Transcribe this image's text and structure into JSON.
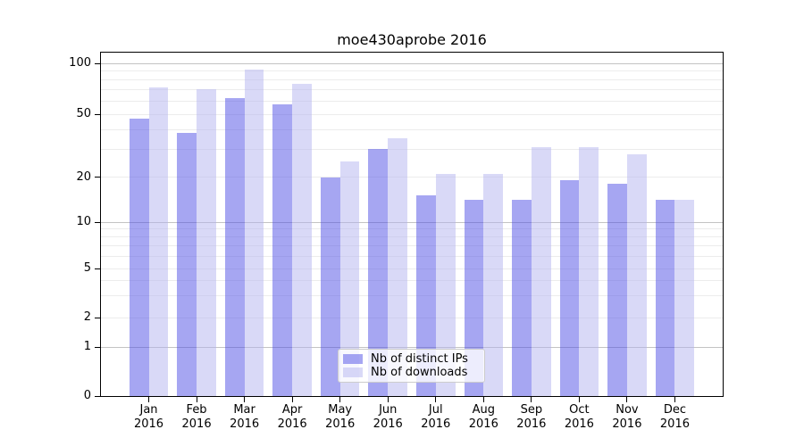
{
  "chart_data": {
    "type": "bar",
    "title": "moe430aprobe 2016",
    "xlabel": "",
    "ylabel": "",
    "categories": [
      "Jan 2016",
      "Feb 2016",
      "Mar 2016",
      "Apr 2016",
      "May 2016",
      "Jun 2016",
      "Jul 2016",
      "Aug 2016",
      "Sep 2016",
      "Oct 2016",
      "Nov 2016",
      "Dec 2016"
    ],
    "series": [
      {
        "name": "Nb of distinct IPs",
        "values": [
          47,
          38,
          62,
          57,
          20,
          30,
          15,
          14,
          14,
          19,
          18,
          14
        ]
      },
      {
        "name": "Nb of downloads",
        "values": [
          72,
          70,
          92,
          76,
          25,
          35,
          21,
          21,
          31,
          31,
          28,
          14
        ]
      }
    ],
    "yscale": "log-like with zero baseline",
    "yticks": [
      100,
      50,
      20,
      10,
      5,
      2,
      1,
      0
    ],
    "ylim": [
      0,
      115
    ],
    "grid": {
      "major_values": [
        1,
        10,
        100
      ],
      "minor_values": [
        2,
        3,
        4,
        5,
        6,
        7,
        8,
        9,
        20,
        30,
        40,
        50,
        60,
        70,
        80,
        90
      ]
    },
    "legend_position": "lower center"
  },
  "colors": {
    "bar_distinct_ips": "#4d4de580",
    "bar_downloads": "#b3b3ef80",
    "grid_major": "#c3c3c3",
    "grid_minor": "#ececec",
    "spine": "#000000",
    "legend_bg": "rgba(255,255,255,0.8)",
    "legend_border": "#cccccc",
    "text": "#000000"
  }
}
